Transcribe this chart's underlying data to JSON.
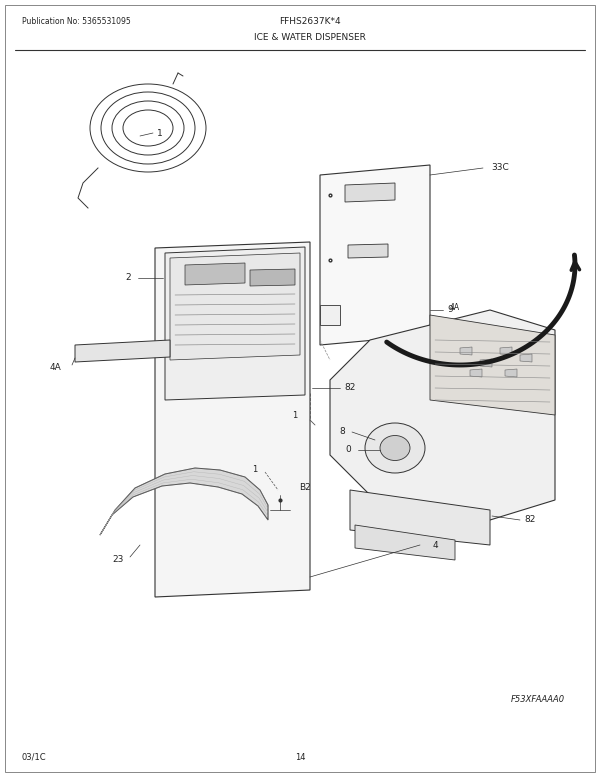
{
  "title_left": "Publication No: 5365531095",
  "title_center": "FFHS2637K*4",
  "title_section": "ICE & WATER DISPENSER",
  "footer_left": "03/1C",
  "footer_center": "14",
  "footer_right": "F53XFAAAA0",
  "bg_color": "#ffffff",
  "lc": "#333333",
  "tc": "#222222",
  "figsize": [
    6.0,
    7.77
  ],
  "dpi": 100
}
